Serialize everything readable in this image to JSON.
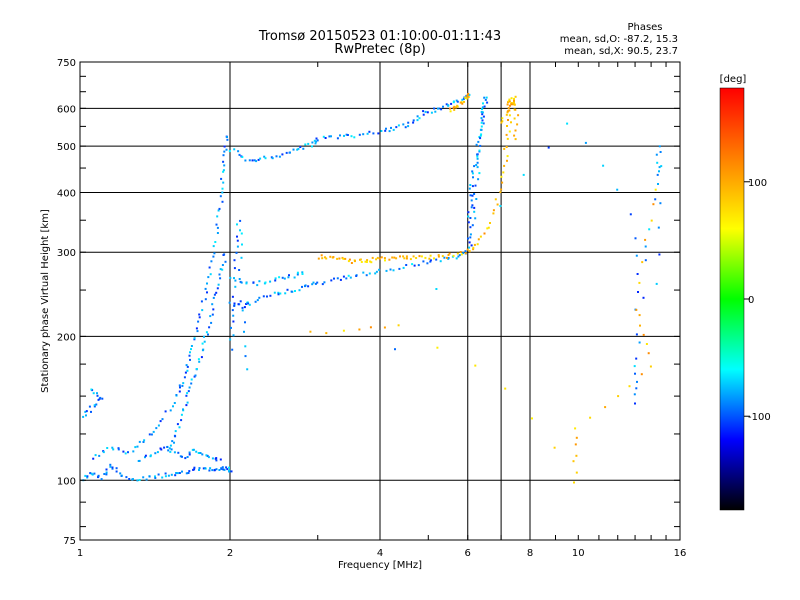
{
  "chart_data": {
    "type": "scatter",
    "title": "Tromsø 20150523 01:10:00-01:11:43",
    "subtitle": "RwPretec (8p)",
    "xlabel": "Frequency [MHz]",
    "ylabel": "Stationary phase Virtual Height [km]",
    "x_scale": "log",
    "y_scale": "log",
    "xlim": [
      1,
      16
    ],
    "ylim": [
      75,
      750
    ],
    "x_ticks": [
      1,
      2,
      4,
      6,
      8,
      10,
      16
    ],
    "x_tick_labels": [
      "1",
      "2",
      "4",
      "6",
      "8",
      "10",
      "16"
    ],
    "y_ticks": [
      75,
      100,
      200,
      300,
      400,
      500,
      600,
      750
    ],
    "y_tick_labels": [
      "75",
      "100",
      "200",
      "300",
      "400",
      "500",
      "600",
      "750"
    ],
    "x_gridlines": [
      2,
      4,
      6,
      7,
      8
    ],
    "y_gridlines": [
      100,
      200,
      300,
      400,
      500,
      600
    ],
    "grid": true,
    "phase_stats": {
      "heading": "Phases",
      "line_o": "mean, sd,O:  -87.2, 15.3",
      "line_x": "mean, sd,X:   90.5, 23.7"
    },
    "colorbar": {
      "label": "[deg]",
      "range": [
        -180,
        180
      ],
      "ticks": [
        100,
        0,
        -100
      ],
      "tick_labels": [
        "100",
        "0",
        "-100"
      ],
      "colors": [
        "#ff0000",
        "#ff8000",
        "#ffff00",
        "#00ff00",
        "#00ffff",
        "#0000ff",
        "#000000"
      ]
    },
    "series": [
      {
        "name": "O-mode",
        "mean_phase": -87.2,
        "segments": [
          {
            "points": [
              [
                1.0,
                101
              ],
              [
                1.05,
                104
              ],
              [
                1.1,
                102
              ],
              [
                1.15,
                108
              ],
              [
                1.2,
                103
              ],
              [
                1.3,
                101
              ],
              [
                1.4,
                102
              ],
              [
                1.5,
                103
              ],
              [
                1.6,
                104
              ],
              [
                1.7,
                106
              ],
              [
                1.8,
                106
              ],
              [
                1.9,
                106
              ],
              [
                1.95,
                107
              ],
              [
                2.0,
                105
              ]
            ]
          },
          {
            "points": [
              [
                1.05,
                112
              ],
              [
                1.15,
                118
              ],
              [
                1.25,
                114
              ],
              [
                1.35,
                123
              ],
              [
                1.45,
                133
              ],
              [
                1.55,
                150
              ],
              [
                1.6,
                162
              ],
              [
                1.65,
                178
              ],
              [
                1.7,
                200
              ],
              [
                1.75,
                230
              ],
              [
                1.8,
                265
              ],
              [
                1.85,
                310
              ],
              [
                1.9,
                365
              ],
              [
                1.92,
                420
              ],
              [
                1.95,
                480
              ],
              [
                1.97,
                530
              ]
            ]
          },
          {
            "points": [
              [
                1.5,
                115
              ],
              [
                1.55,
                125
              ],
              [
                1.6,
                140
              ],
              [
                1.65,
                155
              ],
              [
                1.7,
                170
              ],
              [
                1.75,
                190
              ],
              [
                1.8,
                210
              ],
              [
                1.85,
                240
              ],
              [
                1.9,
                270
              ],
              [
                1.95,
                300
              ]
            ]
          },
          {
            "points": [
              [
                1.3,
                110
              ],
              [
                1.4,
                115
              ],
              [
                1.5,
                118
              ],
              [
                1.6,
                112
              ],
              [
                1.7,
                116
              ],
              [
                1.8,
                113
              ],
              [
                1.9,
                110
              ]
            ]
          },
          {
            "points": [
              [
                1.0,
                135
              ],
              [
                1.05,
                142
              ],
              [
                1.1,
                150
              ],
              [
                1.05,
                155
              ]
            ]
          },
          {
            "points": [
              [
                2.0,
                190
              ],
              [
                2.02,
                230
              ],
              [
                2.05,
                300
              ],
              [
                2.08,
                350
              ],
              [
                2.1,
                240
              ],
              [
                2.15,
                170
              ]
            ]
          },
          {
            "points": [
              [
                2.0,
                495
              ],
              [
                2.15,
                470
              ],
              [
                2.3,
                472
              ],
              [
                2.5,
                480
              ],
              [
                2.7,
                495
              ],
              [
                2.9,
                505
              ],
              [
                3.0,
                520
              ],
              [
                3.3,
                525
              ],
              [
                3.6,
                530
              ],
              [
                4.0,
                540
              ],
              [
                4.3,
                550
              ],
              [
                4.6,
                560
              ],
              [
                4.9,
                590
              ],
              [
                5.2,
                600
              ],
              [
                5.5,
                615
              ],
              [
                5.8,
                630
              ],
              [
                6.0,
                640
              ]
            ]
          },
          {
            "points": [
              [
                2.0,
                235
              ],
              [
                2.1,
                232
              ],
              [
                2.2,
                236
              ],
              [
                2.4,
                245
              ],
              [
                2.6,
                250
              ],
              [
                2.8,
                255
              ],
              [
                3.0,
                260
              ],
              [
                3.3,
                265
              ],
              [
                3.6,
                270
              ],
              [
                4.0,
                275
              ],
              [
                4.5,
                282
              ],
              [
                5.0,
                288
              ],
              [
                5.5,
                293
              ],
              [
                5.9,
                300
              ],
              [
                6.1,
                330
              ],
              [
                6.2,
                400
              ],
              [
                6.3,
                480
              ],
              [
                6.4,
                560
              ],
              [
                6.5,
                630
              ]
            ]
          },
          {
            "points": [
              [
                2.0,
                265
              ],
              [
                2.2,
                258
              ],
              [
                2.4,
                263
              ],
              [
                2.6,
                268
              ],
              [
                2.8,
                272
              ]
            ]
          },
          {
            "points": [
              [
                6.0,
                340
              ],
              [
                6.05,
                380
              ],
              [
                6.1,
                420
              ],
              [
                6.2,
                470
              ],
              [
                6.3,
                520
              ],
              [
                6.4,
                580
              ],
              [
                6.5,
                640
              ]
            ]
          },
          {
            "points": [
              [
                13.0,
                320
              ],
              [
                13.0,
                180
              ],
              [
                13.0,
                145
              ],
              [
                14.3,
                435
              ],
              [
                14.5,
                500
              ],
              [
                14.4,
                260
              ],
              [
                9.5,
                560
              ],
              [
                4.3,
                190
              ]
            ]
          }
        ]
      },
      {
        "name": "X-mode",
        "mean_phase": 90.5,
        "segments": [
          {
            "points": [
              [
                3.0,
                295
              ],
              [
                3.2,
                293
              ],
              [
                3.4,
                290
              ],
              [
                3.6,
                288
              ],
              [
                3.8,
                290
              ],
              [
                4.0,
                292
              ],
              [
                4.3,
                294
              ],
              [
                4.6,
                293
              ],
              [
                5.0,
                294
              ],
              [
                5.4,
                296
              ],
              [
                5.8,
                300
              ],
              [
                6.2,
                310
              ],
              [
                6.6,
                340
              ],
              [
                6.9,
                400
              ],
              [
                7.1,
                470
              ],
              [
                7.2,
                540
              ],
              [
                7.3,
                610
              ],
              [
                7.4,
                640
              ]
            ]
          },
          {
            "points": [
              [
                5.5,
                600
              ],
              [
                5.7,
                610
              ],
              [
                5.9,
                630
              ],
              [
                6.0,
                645
              ]
            ]
          },
          {
            "points": [
              [
                7.0,
                560
              ],
              [
                7.2,
                600
              ],
              [
                7.3,
                630
              ],
              [
                7.5,
                600
              ],
              [
                7.4,
                520
              ]
            ]
          },
          {
            "points": [
              [
                2.9,
                205
              ],
              [
                4.3,
                210
              ],
              [
                9.8,
                100
              ],
              [
                9.8,
                128
              ],
              [
                14.0,
                175
              ],
              [
                13.0,
                230
              ],
              [
                14.3,
                410
              ]
            ]
          }
        ]
      }
    ]
  }
}
